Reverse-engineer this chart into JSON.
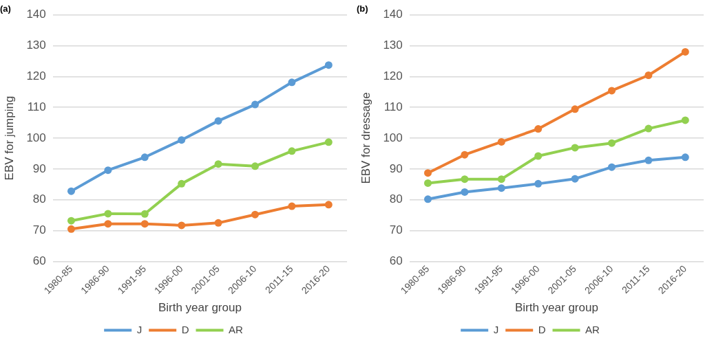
{
  "chart_data": [
    {
      "type": "line",
      "title": "(a)",
      "xlabel": "Birth year group",
      "ylabel": "EBV for jumping",
      "categories": [
        "1980-85",
        "1986-90",
        "1991-95",
        "1996-00",
        "2001-05",
        "2006-10",
        "2011-15",
        "2016-20"
      ],
      "series": [
        {
          "name": "J",
          "color": "#5b9bd5",
          "values": [
            82.8,
            89.6,
            93.8,
            99.4,
            105.6,
            110.9,
            118.1,
            123.7
          ]
        },
        {
          "name": "D",
          "color": "#ed7d31",
          "values": [
            70.5,
            72.2,
            72.2,
            71.7,
            72.5,
            75.2,
            77.9,
            78.4
          ]
        },
        {
          "name": "AR",
          "color": "#92d050",
          "values": [
            73.2,
            75.5,
            75.4,
            85.2,
            91.6,
            90.9,
            95.8,
            98.7
          ]
        }
      ],
      "ylim": [
        60,
        140
      ],
      "yticks": [
        60,
        70,
        80,
        90,
        100,
        110,
        120,
        130,
        140
      ],
      "grid": "y",
      "legend": "bottom",
      "marker": "circle",
      "line_style": "solid"
    },
    {
      "type": "line",
      "title": "(b)",
      "xlabel": "Birth year group",
      "ylabel": "EBV for dressage",
      "categories": [
        "1980-85",
        "1986-90",
        "1991-95",
        "1996-00",
        "2001-05",
        "2006-10",
        "2011-15",
        "2016-20"
      ],
      "series": [
        {
          "name": "J",
          "color": "#5b9bd5",
          "values": [
            80.2,
            82.5,
            83.8,
            85.2,
            86.8,
            90.6,
            92.8,
            93.8
          ]
        },
        {
          "name": "D",
          "color": "#ed7d31",
          "values": [
            88.7,
            94.6,
            98.8,
            103.0,
            109.4,
            115.4,
            120.4,
            128.0
          ]
        },
        {
          "name": "AR",
          "color": "#92d050",
          "values": [
            85.4,
            86.7,
            86.7,
            94.2,
            96.9,
            98.4,
            103.1,
            105.8
          ]
        }
      ],
      "ylim": [
        60,
        140
      ],
      "yticks": [
        60,
        70,
        80,
        90,
        100,
        110,
        120,
        130,
        140
      ],
      "grid": "y",
      "legend": "bottom",
      "marker": "circle",
      "line_style": "solid"
    }
  ]
}
